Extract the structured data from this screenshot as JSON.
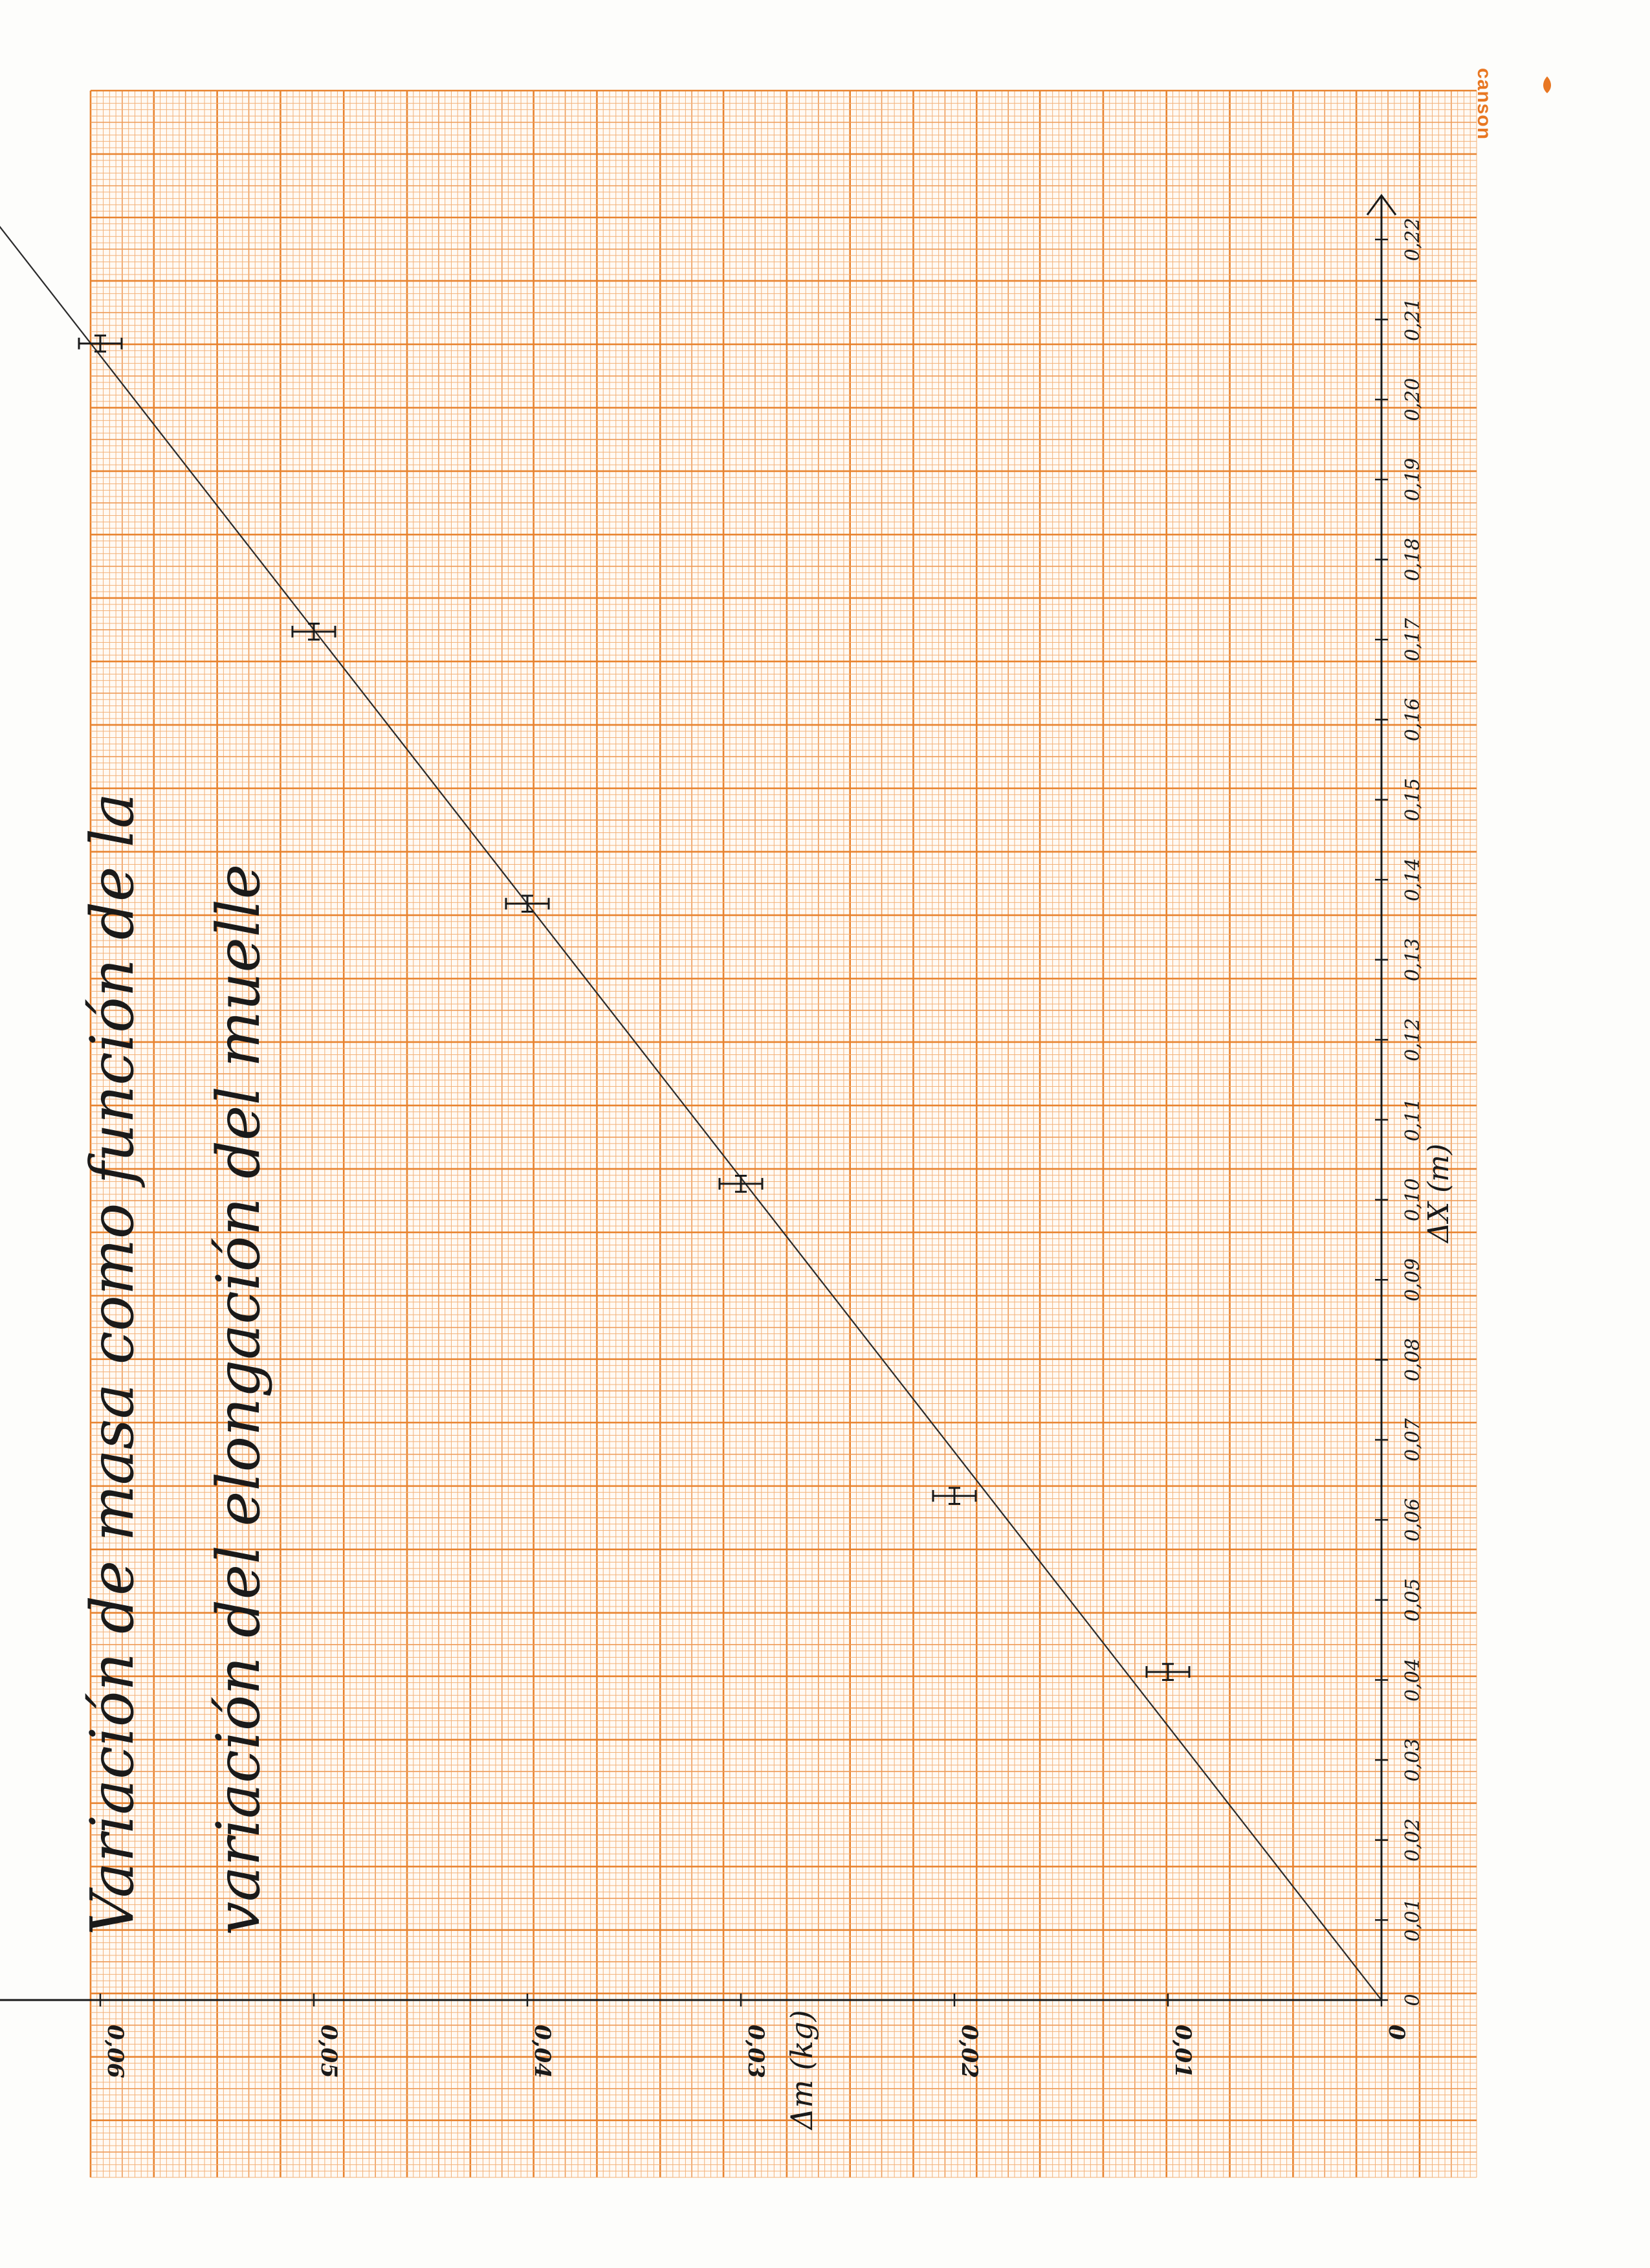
{
  "brand": {
    "name": "canson",
    "color": "#e87722"
  },
  "colors": {
    "grid_fine": "#f3b27a",
    "grid_mid": "#ee9b58",
    "grid_major": "#e8832f",
    "ink": "#1a1a1a",
    "paper": "#fdfdfb"
  },
  "chart_data": {
    "type": "scatter",
    "title": "Variación de masa como función de la variación del elongación del muelle",
    "title_line1": "Variación de masa como función de la",
    "title_line2": "variación del elongación del muelle",
    "xlabel": "ΔX (m)",
    "ylabel": "Δm (kg)",
    "x_ticks": [
      "0",
      "0,01",
      "0,02",
      "0,03",
      "0,04",
      "0,05",
      "0,06",
      "0,07",
      "0,08",
      "0,09",
      "0,10",
      "0,11",
      "0,12",
      "0,13",
      "0,14",
      "0,15",
      "0,16",
      "0,17",
      "0,18",
      "0,19",
      "0,20",
      "0,21",
      "0,22"
    ],
    "y_ticks": [
      "0",
      "0,01",
      "0,02",
      "0,03",
      "0,04",
      "0,05",
      "0,06"
    ],
    "xlim": [
      0,
      0.22
    ],
    "ylim": [
      0,
      0.06
    ],
    "grid": true,
    "points": [
      {
        "x": 0.041,
        "y": 0.01
      },
      {
        "x": 0.063,
        "y": 0.02
      },
      {
        "x": 0.102,
        "y": 0.03
      },
      {
        "x": 0.137,
        "y": 0.04
      },
      {
        "x": 0.171,
        "y": 0.05
      },
      {
        "x": 0.207,
        "y": 0.06
      }
    ],
    "error_bars": {
      "x": 0.001,
      "y": 0.001
    },
    "fit_line": {
      "slope": 0.292,
      "intercept": 0
    }
  }
}
